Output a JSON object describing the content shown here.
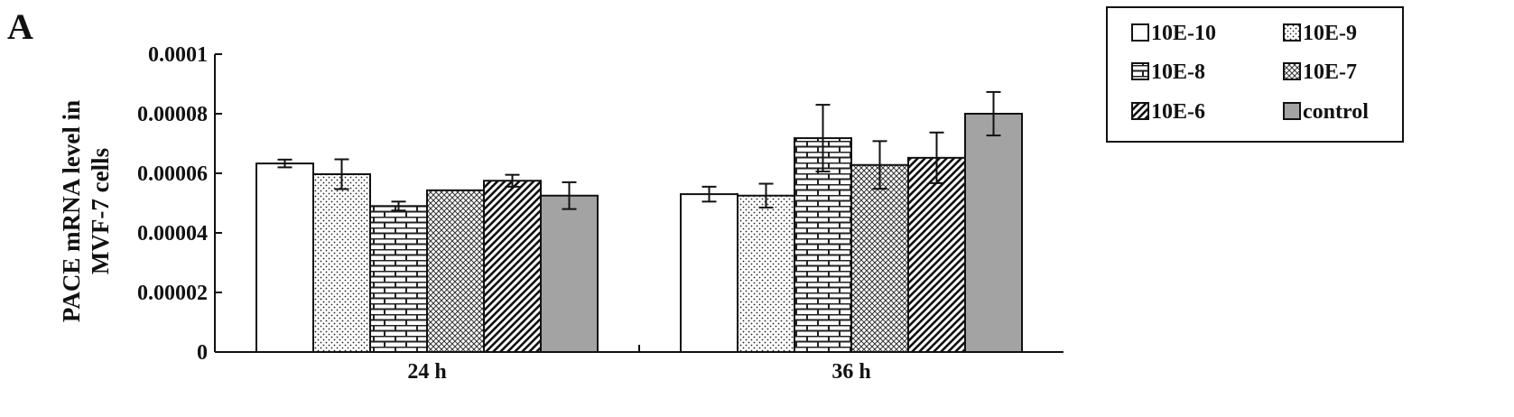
{
  "panel_label": "A",
  "chart_data": {
    "type": "bar",
    "title": "",
    "xlabel": "",
    "ylabel": "PACE mRNA level in MVF-7 cells",
    "ylabel_lines": [
      "PACE mRNA level in",
      "MVF-7 cells"
    ],
    "ylim": [
      0,
      0.0001
    ],
    "yticks": [
      0,
      2e-05,
      4e-05,
      6e-05,
      8e-05,
      0.0001
    ],
    "ytick_labels": [
      "0",
      "0.00002",
      "0.00004",
      "0.00006",
      "0.00008",
      "0.0001"
    ],
    "grid": false,
    "legend_position": "top-right",
    "categories": [
      "24 h",
      "36 h"
    ],
    "series": [
      {
        "name": "10E-10",
        "pattern": "white",
        "values": [
          6.33e-05,
          5.3e-05
        ],
        "errors": [
          1.3e-06,
          2.5e-06
        ]
      },
      {
        "name": "10E-9",
        "pattern": "dots",
        "values": [
          5.97e-05,
          5.25e-05
        ],
        "errors": [
          5e-06,
          4e-06
        ]
      },
      {
        "name": "10E-8",
        "pattern": "brick",
        "values": [
          4.9e-05,
          7.18e-05
        ],
        "errors": [
          1.5e-06,
          1.12e-05
        ]
      },
      {
        "name": "10E-7",
        "pattern": "crosshatch",
        "values": [
          5.43e-05,
          6.28e-05
        ],
        "errors": [
          0.0,
          8e-06
        ]
      },
      {
        "name": "10E-6",
        "pattern": "diagonal",
        "values": [
          5.75e-05,
          6.52e-05
        ],
        "errors": [
          2e-06,
          8.5e-06
        ]
      },
      {
        "name": "control",
        "pattern": "gray",
        "values": [
          5.25e-05,
          8e-05
        ],
        "errors": [
          4.5e-06,
          7.3e-06
        ]
      }
    ]
  }
}
